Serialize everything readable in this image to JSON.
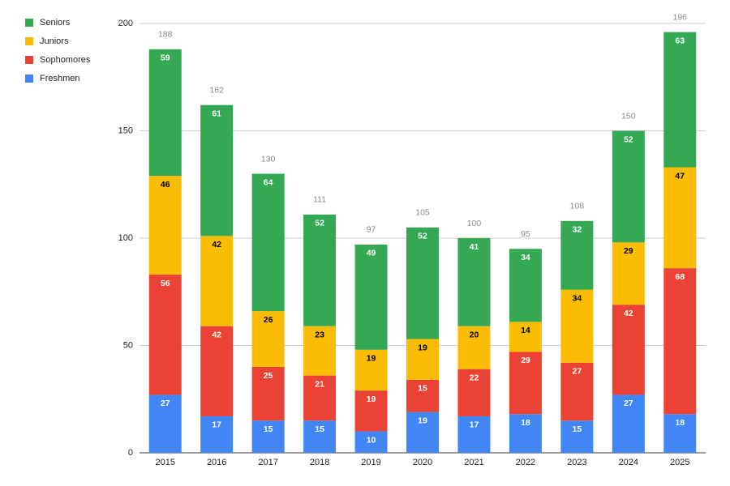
{
  "chart_data": {
    "type": "stacked_bar",
    "categories": [
      "2015",
      "2016",
      "2017",
      "2018",
      "2019",
      "2020",
      "2021",
      "2022",
      "2023",
      "2024",
      "2025"
    ],
    "series": [
      {
        "name": "Freshmen",
        "color": "#4285f4",
        "label_color": "#ffffff",
        "values": [
          27,
          17,
          15,
          15,
          10,
          19,
          17,
          18,
          15,
          27,
          18
        ]
      },
      {
        "name": "Sophomores",
        "color": "#ea4335",
        "label_color": "#ffffff",
        "values": [
          56,
          42,
          25,
          21,
          19,
          15,
          22,
          29,
          27,
          42,
          68
        ]
      },
      {
        "name": "Juniors",
        "color": "#fbbc04",
        "label_color": "#000000",
        "values": [
          46,
          42,
          26,
          23,
          19,
          19,
          20,
          14,
          34,
          29,
          47
        ]
      },
      {
        "name": "Seniors",
        "color": "#34a853",
        "label_color": "#ffffff",
        "values": [
          59,
          61,
          64,
          52,
          49,
          52,
          41,
          34,
          32,
          52,
          63
        ]
      }
    ],
    "totals": [
      188,
      162,
      130,
      111,
      97,
      105,
      100,
      95,
      108,
      150,
      196
    ],
    "ylim": [
      0,
      200
    ],
    "yticks": [
      0,
      50,
      100,
      150,
      200
    ],
    "grid": true
  }
}
